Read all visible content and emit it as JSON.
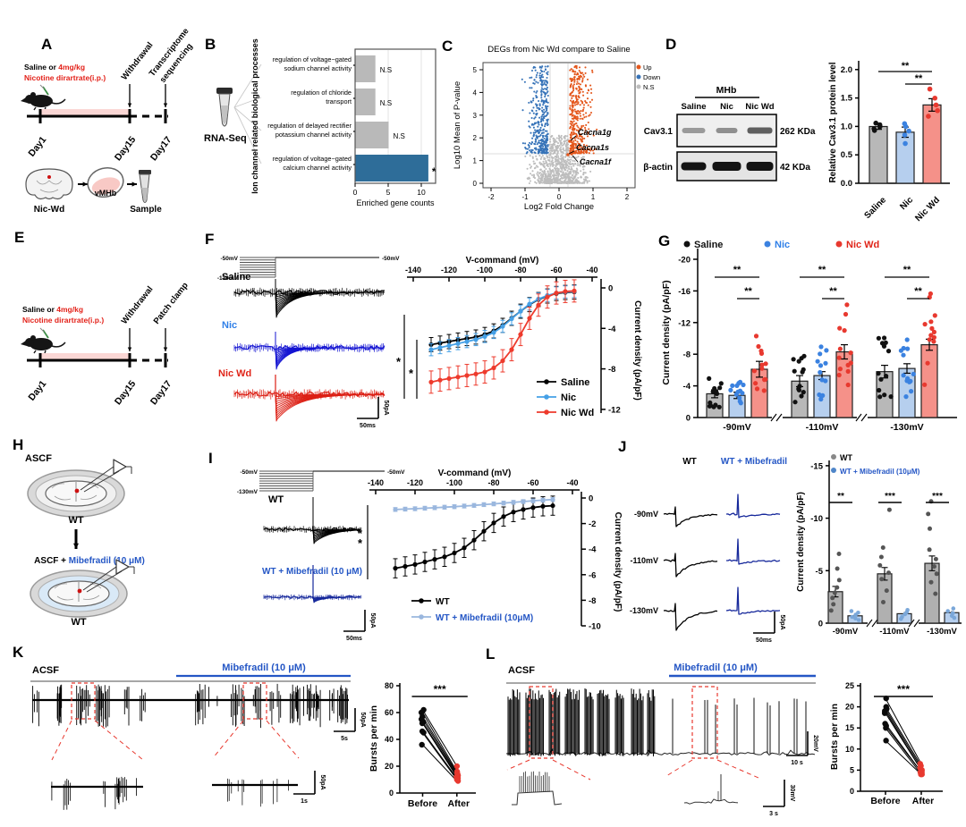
{
  "colors": {
    "red": "#e32119",
    "nic_label": "#2f7fe8",
    "nic_trace": "#1414d2",
    "nicwd": "#e02519",
    "nicwd_trace": "#dc1f14",
    "mib": "#2456c5",
    "mib_trace": "#16289b",
    "iv_nic": "#45a0e6",
    "iv_nicwd": "#ee3a2c",
    "iv_mib": "#9ab7de",
    "bar_gray": "#b8b8b8",
    "bar_blue": "#b6cfee",
    "bar_red": "#f59189",
    "dot_black": "#111111",
    "dot_blue": "#3b82e0",
    "dot_red": "#e8392f",
    "b_bar_gray": "#b9b9b9",
    "b_bar_blue": "#2e6d99",
    "up": "#e4571c",
    "down": "#3673b8",
    "ns": "#bdbdbd",
    "pink": "#fbd7d5",
    "after_red": "#e8392f"
  },
  "panels": {
    "A": {
      "label": "A",
      "inj1a": "Saline or ",
      "inj1b": "4mg/kg",
      "inj2": "Nicotine dirartrate(i.p.)",
      "arrow1": "Withdrawal",
      "arrow2a": "Transcriptome",
      "arrow2b": "sequencing",
      "days": [
        "Day1",
        "Day15",
        "Day17"
      ],
      "flow1": "Nic-Wd",
      "flow2": "vMHb",
      "flow3": "Sample"
    },
    "B": {
      "label": "B",
      "tube": "RNA-Seq",
      "axis_title": "Ion channel related biological processes",
      "xlabel": "Enriched gene counts",
      "xticks": [
        "0",
        "5",
        "10"
      ],
      "terms": [
        {
          "l1": "regulation of voltage−gated",
          "l2": "sodium channel activity",
          "value": 3,
          "sig": "N.S"
        },
        {
          "l1": "regulation of chloride",
          "l2": "transport",
          "value": 3,
          "sig": "N.S"
        },
        {
          "l1": "regulation of delayed rectifier",
          "l2": "potassium channel activity",
          "value": 5,
          "sig": "N.S"
        },
        {
          "l1": "regulation of voltage−gated",
          "l2": "calcium channel activity",
          "value": 11,
          "sig": "*"
        }
      ]
    },
    "C": {
      "label": "C",
      "title": "DEGs from Nic Wd compare to Saline",
      "legend": [
        "Up",
        "Down",
        "N.S"
      ],
      "ylabel": "Log10 Mean of P-value",
      "xlabel": "Log2 Fold Change",
      "yticks": [
        "0",
        "1",
        "2",
        "3",
        "4",
        "5"
      ],
      "xticks": [
        "-2",
        "-1",
        "0",
        "1",
        "2"
      ],
      "genes": [
        "Cacna1g",
        "Cacna1s",
        "Cacna1f"
      ]
    },
    "D": {
      "label": "D",
      "region": "MHb",
      "lanes": [
        "Saline",
        "Nic",
        "Nic Wd"
      ],
      "row1": "Cav3.1",
      "kda1": "262 KDa",
      "row2": "β-actin",
      "kda2": "42 KDa",
      "chart": {
        "ylabel": "Relative Cav3.1 protein level",
        "yticks": [
          "0.0",
          "0.5",
          "1.0",
          "1.5",
          "2.0"
        ],
        "categories": [
          "Saline",
          "Nic",
          "Nic Wd"
        ],
        "values": [
          1.0,
          0.9,
          1.38
        ],
        "errors": [
          0.05,
          0.09,
          0.11
        ],
        "dots": [
          [
            0.93,
            0.96,
            1.0,
            1.03,
            1.06
          ],
          [
            0.7,
            0.85,
            0.92,
            1.0,
            1.05
          ],
          [
            1.18,
            1.28,
            1.38,
            1.5,
            1.66
          ]
        ],
        "sig": [
          {
            "a": 0,
            "b": 2,
            "t": "**"
          },
          {
            "a": 1,
            "b": 2,
            "t": "**"
          }
        ]
      }
    },
    "E": {
      "label": "E",
      "inj1a": "Saline or ",
      "inj1b": "4mg/kg",
      "inj2": "Nicotine dirartrate(i.p.)",
      "arrow1": "Withdrawal",
      "arrow2a": "Patch clamp",
      "days": [
        "Day1",
        "Day15",
        "Day17"
      ]
    },
    "F": {
      "label": "F",
      "proto_top": "-50mV",
      "proto_bottom": "-130mV",
      "proto_right": "-50mV",
      "traces": [
        "Saline",
        "Nic",
        "Nic Wd"
      ],
      "scale_v": "50pA",
      "scale_h": "50ms",
      "iv": {
        "title": "V-command (mV)",
        "xticks": [
          "-140",
          "-120",
          "-100",
          "-80",
          "-60",
          "-40"
        ],
        "ylabel": "Current density (pA/pF)",
        "yticks": [
          "0",
          "-4",
          "-8",
          "-12"
        ],
        "sig": [
          "*",
          "*"
        ],
        "x": [
          -130,
          -125,
          -120,
          -115,
          -110,
          -105,
          -100,
          -95,
          -90,
          -85,
          -80,
          -75,
          -70,
          -65,
          -60,
          -55,
          -50
        ],
        "series": [
          {
            "name": "Saline",
            "err": 0.7,
            "values": [
              -5.6,
              -5.45,
              -5.3,
              -5.15,
              -5.0,
              -4.85,
              -4.6,
              -4.25,
              -3.7,
              -3.0,
              -2.3,
              -1.65,
              -1.15,
              -0.8,
              -0.55,
              -0.45,
              -0.4
            ]
          },
          {
            "name": "Nic",
            "err": 0.6,
            "values": [
              -6.1,
              -5.9,
              -5.7,
              -5.5,
              -5.3,
              -5.1,
              -4.8,
              -4.4,
              -3.8,
              -3.05,
              -2.3,
              -1.6,
              -1.1,
              -0.75,
              -0.5,
              -0.4,
              -0.35
            ]
          },
          {
            "name": "Nic Wd",
            "err": 1.1,
            "values": [
              -9.3,
              -9.1,
              -8.95,
              -8.8,
              -8.65,
              -8.5,
              -8.3,
              -7.9,
              -7.2,
              -6.1,
              -4.6,
              -3.0,
              -1.7,
              -0.9,
              -0.5,
              -0.35,
              -0.3
            ]
          }
        ]
      }
    },
    "G": {
      "label": "G",
      "legend": [
        "Saline",
        "Nic",
        "Nic Wd"
      ],
      "ylabel": "Current density (pA/pF)",
      "yticks": [
        "0",
        "-4",
        "-8",
        "-12",
        "-16",
        "-20"
      ],
      "groups": [
        "-90mV",
        "-110mV",
        "-130mV"
      ],
      "sig": "**",
      "series": [
        {
          "name": "Saline",
          "values": [
            -3.0,
            -4.6,
            -5.8
          ],
          "err": [
            0.5,
            0.7,
            0.8
          ]
        },
        {
          "name": "Nic",
          "values": [
            -2.8,
            -5.3,
            -6.2
          ],
          "err": [
            0.4,
            0.5,
            0.6
          ]
        },
        {
          "name": "Nic Wd",
          "values": [
            -6.1,
            -8.3,
            -9.2
          ],
          "err": [
            1.0,
            0.9,
            0.7
          ]
        }
      ]
    },
    "H": {
      "label": "H",
      "cond1": "ASCF",
      "wt1": "WT",
      "cond2a": "ASCF + ",
      "cond2b": "Mibefradil (10 μM)",
      "wt2": "WT"
    },
    "I": {
      "label": "I",
      "proto_top": "-50mV",
      "proto_bottom": "-130mV",
      "proto_right": "-50mV",
      "trace1": "WT",
      "trace2": "WT + Mibefradil (10 μM)",
      "scale_v": "50pA",
      "scale_h": "50ms",
      "iv": {
        "title": "V-command (mV)",
        "xticks": [
          "-140",
          "-120",
          "-100",
          "-80",
          "-60",
          "-40"
        ],
        "ylabel": "Current density (pA/pF)",
        "yticks": [
          "0",
          "-2",
          "-4",
          "-6",
          "-8",
          "-10"
        ],
        "sig": "**",
        "legend": [
          "WT",
          "WT + Mibefradil (10μM)"
        ],
        "x": [
          -130,
          -125,
          -120,
          -115,
          -110,
          -105,
          -100,
          -95,
          -90,
          -85,
          -80,
          -75,
          -70,
          -65,
          -60,
          -55,
          -50
        ],
        "series": [
          {
            "name": "WT",
            "err": 0.75,
            "values": [
              -5.5,
              -5.35,
              -5.2,
              -5.0,
              -4.8,
              -4.6,
              -4.3,
              -3.9,
              -3.3,
              -2.6,
              -1.95,
              -1.45,
              -1.1,
              -0.9,
              -0.75,
              -0.65,
              -0.6
            ]
          },
          {
            "name": "WT + Mibefradil (10μM)",
            "err": 0.15,
            "values": [
              -0.9,
              -0.87,
              -0.84,
              -0.8,
              -0.76,
              -0.72,
              -0.68,
              -0.63,
              -0.58,
              -0.52,
              -0.46,
              -0.4,
              -0.34,
              -0.28,
              -0.22,
              -0.17,
              -0.12
            ]
          }
        ]
      }
    },
    "J": {
      "label": "J",
      "col1": "WT",
      "col2": "WT + Mibefradil",
      "rows": [
        "-90mV",
        "-110mV",
        "-130mV"
      ],
      "scale_v": "50pA",
      "scale_h": "50ms",
      "chart": {
        "ylabel": "Current density (pA/pF)",
        "yticks": [
          "0",
          "-5",
          "-10",
          "-15"
        ],
        "legend": [
          "WT",
          "WT + Mibefradil (10μM)"
        ],
        "groups": [
          "-90mV",
          "-110mV",
          "-130mV"
        ],
        "wt_values": [
          -3.0,
          -4.7,
          -5.7
        ],
        "wt_err": [
          0.5,
          0.6,
          0.7
        ],
        "mib_values": [
          -0.7,
          -0.9,
          -1.0
        ],
        "mib_err": [
          0.12,
          0.15,
          0.15
        ],
        "wt_dots": [
          [
            -1.2,
            -1.8,
            -2.4,
            -2.9,
            -3.4,
            -4.1,
            -5.2,
            -6.6
          ],
          [
            -2.0,
            -3.1,
            -4.2,
            -4.8,
            -5.5,
            -6.3,
            -7.2,
            -10.8
          ],
          [
            -2.8,
            -3.9,
            -4.7,
            -5.4,
            -6.1,
            -7.0,
            -9.0,
            -10.4,
            -11.6
          ]
        ],
        "mib_dots": [
          [
            -0.3,
            -0.45,
            -0.6,
            -0.8,
            -1.0,
            -1.15
          ],
          [
            -0.4,
            -0.6,
            -0.85,
            -1.05,
            -1.25
          ],
          [
            -0.5,
            -0.7,
            -0.95,
            -1.15,
            -1.4
          ]
        ],
        "sig": [
          "**",
          "***",
          "***"
        ]
      }
    },
    "K": {
      "label": "K",
      "cond1": "ACSF",
      "cond2": "Mibefradil (10 μM)",
      "scale_main_v": "50pA",
      "scale_main_h": "5s",
      "scale_inset_v": "50pA",
      "scale_inset_h": "1s",
      "chart": {
        "ylabel": "Bursts per min",
        "yticks": [
          "0",
          "20",
          "40",
          "60",
          "80"
        ],
        "categories": [
          "Before",
          "After"
        ],
        "sig": "***",
        "pairs": [
          [
            62,
            20
          ],
          [
            60,
            16
          ],
          [
            57,
            15
          ],
          [
            55,
            14
          ],
          [
            53,
            13
          ],
          [
            52,
            12
          ],
          [
            46,
            11
          ],
          [
            45,
            10
          ],
          [
            36,
            9
          ]
        ]
      }
    },
    "L": {
      "label": "L",
      "cond1": "ACSF",
      "cond2": "Mibefradil (10 μM)",
      "scale_main_v": "20mV",
      "scale_main_h": "10 s",
      "scale_inset_v": "30mV",
      "scale_inset_h": "3 s",
      "chart": {
        "ylabel": "Bursts per min",
        "yticks": [
          "0",
          "5",
          "10",
          "15",
          "20",
          "25"
        ],
        "categories": [
          "Before",
          "After"
        ],
        "sig": "***",
        "pairs": [
          [
            22,
            6.5
          ],
          [
            20,
            6
          ],
          [
            19.5,
            5.5
          ],
          [
            19,
            5
          ],
          [
            18.5,
            5
          ],
          [
            16,
            4.5
          ],
          [
            15.5,
            4.5
          ],
          [
            15,
            4
          ],
          [
            12,
            4
          ]
        ]
      }
    }
  }
}
